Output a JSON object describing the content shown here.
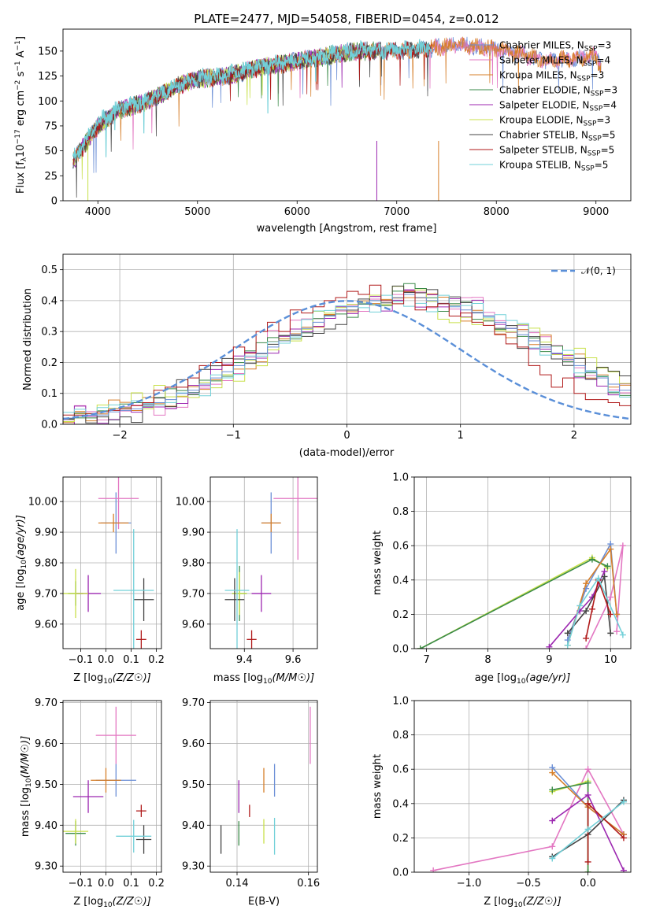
{
  "figure": {
    "title": "PLATE=2477, MJD=54058, FIBERID=0454, z=0.012",
    "colors": {
      "Chabrier MILES": "#6b8fd6",
      "Salpeter MILES": "#e377c2",
      "Kroupa MILES": "#d67f2a",
      "Chabrier ELODIE": "#3a8a48",
      "Salpeter ELODIE": "#9c27b0",
      "Kroupa ELODIE": "#c8e04a",
      "Chabrier STELIB": "#444444",
      "Salpeter STELIB": "#b01a1a",
      "Kroupa STELIB": "#72d0d8"
    }
  },
  "chart_data": [
    {
      "id": "spectrum",
      "type": "line",
      "xlabel": "wavelength [Angstrom, rest frame]",
      "ylabel": "Flux [f_λ 10^-17 erg cm^-2 s^-1 A^-1]",
      "xlim": [
        3650,
        9350
      ],
      "ylim": [
        0,
        172
      ],
      "xticks": [
        4000,
        5000,
        6000,
        7000,
        8000,
        9000
      ],
      "yticks": [
        0,
        25,
        50,
        75,
        100,
        125,
        150
      ],
      "grid": false,
      "legend_position": "top-right",
      "legend": [
        {
          "name": "Chabrier MILES",
          "suffix": "=3"
        },
        {
          "name": "Salpeter MILES",
          "suffix": "=4"
        },
        {
          "name": "Kroupa MILES",
          "suffix": "=3"
        },
        {
          "name": "Chabrier ELODIE",
          "suffix": "=3"
        },
        {
          "name": "Salpeter ELODIE",
          "suffix": "=4"
        },
        {
          "name": "Kroupa ELODIE",
          "suffix": "=3"
        },
        {
          "name": "Chabrier STELIB",
          "suffix": "=5"
        },
        {
          "name": "Salpeter STELIB",
          "suffix": "=5"
        },
        {
          "name": "Kroupa STELIB",
          "suffix": "=5"
        }
      ],
      "legend_sub": "SSP",
      "series": [
        {
          "name": "Chabrier MILES",
          "x": [
            3750,
            4000,
            4200,
            4500,
            4800,
            5000,
            5300,
            5600,
            6000,
            6300,
            6600,
            7000,
            7300,
            7600,
            8000,
            8500,
            9000,
            9050
          ],
          "y": [
            40,
            75,
            90,
            100,
            115,
            122,
            125,
            133,
            140,
            145,
            150,
            150,
            152,
            156,
            152,
            140,
            145,
            135
          ]
        },
        {
          "name": "Kroupa STELIB",
          "x": [
            3750,
            4000,
            4200,
            4500,
            4800,
            5000,
            5300,
            5600,
            6000,
            6300,
            6600,
            7000,
            7300
          ],
          "y": [
            42,
            78,
            92,
            102,
            116,
            123,
            126,
            134,
            141,
            146,
            151,
            151,
            153
          ]
        }
      ],
      "dropouts": [
        {
          "name": "Kroupa ELODIE",
          "x": 3900
        },
        {
          "name": "Salpeter ELODIE",
          "x": 6800
        },
        {
          "name": "Kroupa MILES",
          "x": 7420
        }
      ]
    },
    {
      "id": "residuals",
      "type": "bar",
      "xlabel": "(data-model)/error",
      "ylabel": "Normed distribution",
      "xlim": [
        -2.5,
        2.5
      ],
      "ylim": [
        0,
        0.55
      ],
      "xticks": [
        -2,
        -1,
        0,
        1,
        2
      ],
      "yticks": [
        0.0,
        0.1,
        0.2,
        0.3,
        0.4,
        0.5
      ],
      "grid": true,
      "legend_position": "top-right",
      "legend": [
        "𝒩(0, 1)"
      ],
      "bin_start": -2.5,
      "bin_width": 0.1,
      "series": [
        {
          "name": "Chabrier MILES",
          "values": [
            0.02,
            0.025,
            0.03,
            0.03,
            0.04,
            0.045,
            0.05,
            0.06,
            0.07,
            0.08,
            0.1,
            0.11,
            0.13,
            0.15,
            0.17,
            0.19,
            0.21,
            0.23,
            0.25,
            0.27,
            0.29,
            0.31,
            0.33,
            0.35,
            0.37,
            0.38,
            0.39,
            0.4,
            0.4,
            0.41,
            0.42,
            0.41,
            0.4,
            0.39,
            0.38,
            0.37,
            0.36,
            0.35,
            0.33,
            0.31,
            0.29,
            0.27,
            0.25,
            0.23,
            0.21,
            0.19,
            0.17,
            0.15,
            0.13,
            0.11,
            0.09,
            0.08,
            0.07,
            0.06,
            0.05,
            0.04,
            0.035,
            0.03,
            0.025,
            0.02
          ]
        },
        {
          "name": "Salpeter STELIB",
          "values": [
            0.03,
            0.03,
            0.035,
            0.04,
            0.045,
            0.05,
            0.06,
            0.07,
            0.11,
            0.12,
            0.12,
            0.15,
            0.19,
            0.2,
            0.19,
            0.25,
            0.23,
            0.3,
            0.33,
            0.3,
            0.37,
            0.36,
            0.38,
            0.4,
            0.41,
            0.43,
            0.42,
            0.45,
            0.4,
            0.39,
            0.43,
            0.37,
            0.38,
            0.39,
            0.35,
            0.36,
            0.33,
            0.32,
            0.29,
            0.26,
            0.25,
            0.19,
            0.16,
            0.12,
            0.15,
            0.1,
            0.08,
            0.08,
            0.07,
            0.06,
            0.05,
            0.04,
            0.035,
            0.03,
            0.025,
            0.03,
            0.02,
            0.02,
            0.02,
            0.02
          ]
        }
      ],
      "normal_curve": {
        "name": "𝒩(0, 1)",
        "mean": 0,
        "sigma": 1
      }
    },
    {
      "id": "age-vs-Z",
      "type": "scatter",
      "xlabel": "Z [log10(Z/Z☉)]",
      "ylabel": "age [log10(age/yr)]",
      "xlim": [
        -0.17,
        0.22
      ],
      "ylim": [
        9.52,
        10.08
      ],
      "xticks": [
        -0.1,
        0.0,
        0.1,
        0.2
      ],
      "yticks": [
        9.6,
        9.7,
        9.8,
        9.9,
        10.0
      ],
      "grid": true,
      "points": [
        {
          "name": "Chabrier MILES",
          "x": 0.04,
          "y": 9.93,
          "xerr": 0.06,
          "yerr": 0.1
        },
        {
          "name": "Salpeter MILES",
          "x": 0.05,
          "y": 10.01,
          "xerr": 0.08,
          "yerr": 0.1
        },
        {
          "name": "Kroupa MILES",
          "x": 0.03,
          "y": 9.93,
          "xerr": 0.06,
          "yerr": 0.03
        },
        {
          "name": "Chabrier ELODIE",
          "x": -0.12,
          "y": 9.7,
          "xerr": 0.03,
          "yerr": 0.04
        },
        {
          "name": "Salpeter ELODIE",
          "x": -0.07,
          "y": 9.7,
          "xerr": 0.05,
          "yerr": 0.06
        },
        {
          "name": "Kroupa ELODIE",
          "x": -0.12,
          "y": 9.7,
          "xerr": 0.05,
          "yerr": 0.08
        },
        {
          "name": "Chabrier STELIB",
          "x": 0.15,
          "y": 9.68,
          "xerr": 0.04,
          "yerr": 0.07
        },
        {
          "name": "Salpeter STELIB",
          "x": 0.14,
          "y": 9.55,
          "xerr": 0.02,
          "yerr": 0.03
        },
        {
          "name": "Kroupa STELIB",
          "x": 0.11,
          "y": 9.71,
          "xerr": 0.08,
          "yerr": 0.2
        }
      ]
    },
    {
      "id": "age-vs-mass",
      "type": "scatter",
      "xlabel": "mass [log10(M/M☉)]",
      "ylabel": "",
      "xlim": [
        9.26,
        9.7
      ],
      "ylim": [
        9.52,
        10.08
      ],
      "xticks": [
        9.4,
        9.6
      ],
      "yticks": [
        9.6,
        9.7,
        9.8,
        9.9,
        10.0
      ],
      "grid": true,
      "points": [
        {
          "name": "Chabrier MILES",
          "x": 9.51,
          "y": 9.93,
          "xerr": 0.04,
          "yerr": 0.1
        },
        {
          "name": "Salpeter MILES",
          "x": 9.62,
          "y": 10.01,
          "xerr": 0.1,
          "yerr": 0.2
        },
        {
          "name": "Kroupa MILES",
          "x": 9.51,
          "y": 9.93,
          "xerr": 0.04,
          "yerr": 0.03
        },
        {
          "name": "Chabrier ELODIE",
          "x": 9.38,
          "y": 9.7,
          "xerr": 0.03,
          "yerr": 0.09
        },
        {
          "name": "Salpeter ELODIE",
          "x": 9.47,
          "y": 9.7,
          "xerr": 0.04,
          "yerr": 0.06
        },
        {
          "name": "Kroupa ELODIE",
          "x": 9.38,
          "y": 9.7,
          "xerr": 0.03,
          "yerr": 0.07
        },
        {
          "name": "Chabrier STELIB",
          "x": 9.36,
          "y": 9.68,
          "xerr": 0.04,
          "yerr": 0.07
        },
        {
          "name": "Salpeter STELIB",
          "x": 9.43,
          "y": 9.55,
          "xerr": 0.02,
          "yerr": 0.03
        },
        {
          "name": "Kroupa STELIB",
          "x": 9.37,
          "y": 9.71,
          "xerr": 0.05,
          "yerr": 0.2
        }
      ]
    },
    {
      "id": "mass-weight-vs-age",
      "type": "line",
      "xlabel": "age [log10(age/yr)]",
      "ylabel": "mass weight",
      "xlim": [
        6.8,
        10.33
      ],
      "ylim": [
        0,
        1.0
      ],
      "xticks": [
        7,
        8,
        9,
        10
      ],
      "yticks": [
        0.0,
        0.2,
        0.4,
        0.6,
        0.8,
        1.0
      ],
      "grid": true,
      "series": [
        {
          "name": "Kroupa ELODIE",
          "x": [
            6.9,
            9.7,
            9.95
          ],
          "y": [
            0.0,
            0.53,
            0.47
          ]
        },
        {
          "name": "Chabrier ELODIE",
          "x": [
            6.9,
            9.7,
            9.95
          ],
          "y": [
            0.0,
            0.52,
            0.48
          ]
        },
        {
          "name": "Salpeter MILES",
          "x": [
            9.6,
            10.0,
            10.2,
            10.1
          ],
          "y": [
            0.0,
            0.3,
            0.6,
            0.1
          ]
        },
        {
          "name": "Chabrier MILES",
          "x": [
            9.3,
            9.6,
            10.0,
            10.1
          ],
          "y": [
            0.05,
            0.35,
            0.61,
            0.2
          ]
        },
        {
          "name": "Kroupa MILES",
          "x": [
            9.3,
            9.6,
            10.0,
            10.1
          ],
          "y": [
            0.02,
            0.38,
            0.58,
            0.2
          ]
        },
        {
          "name": "Salpeter ELODIE",
          "x": [
            9.0,
            9.5,
            9.7,
            9.9
          ],
          "y": [
            0.01,
            0.22,
            0.3,
            0.45
          ]
        },
        {
          "name": "Chabrier STELIB",
          "x": [
            9.3,
            9.6,
            9.9,
            10.0
          ],
          "y": [
            0.09,
            0.22,
            0.42,
            0.09
          ]
        },
        {
          "name": "Salpeter STELIB",
          "x": [
            9.6,
            9.7,
            9.8,
            10.0
          ],
          "y": [
            0.06,
            0.23,
            0.4,
            0.2
          ]
        },
        {
          "name": "Kroupa STELIB",
          "x": [
            9.3,
            9.5,
            9.8,
            10.2
          ],
          "y": [
            0.02,
            0.25,
            0.41,
            0.08
          ]
        }
      ]
    },
    {
      "id": "mass-vs-Z",
      "type": "scatter",
      "xlabel": "Z [log10(Z/Z☉)]",
      "ylabel": "mass [log10(M/M☉)]",
      "xlim": [
        -0.17,
        0.22
      ],
      "ylim": [
        9.285,
        9.705
      ],
      "xticks": [
        -0.1,
        0.0,
        0.1,
        0.2
      ],
      "yticks": [
        9.3,
        9.4,
        9.5,
        9.6,
        9.7
      ],
      "grid": true,
      "points": [
        {
          "name": "Chabrier MILES",
          "x": 0.04,
          "y": 9.51,
          "xerr": 0.08,
          "yerr": 0.04
        },
        {
          "name": "Salpeter MILES",
          "x": 0.04,
          "y": 9.62,
          "xerr": 0.08,
          "yerr": 0.07
        },
        {
          "name": "Kroupa MILES",
          "x": 0.0,
          "y": 9.51,
          "xerr": 0.06,
          "yerr": 0.03
        },
        {
          "name": "Chabrier ELODIE",
          "x": -0.12,
          "y": 9.38,
          "xerr": 0.04,
          "yerr": 0.03
        },
        {
          "name": "Salpeter ELODIE",
          "x": -0.07,
          "y": 9.47,
          "xerr": 0.06,
          "yerr": 0.04
        },
        {
          "name": "Kroupa ELODIE",
          "x": -0.12,
          "y": 9.385,
          "xerr": 0.05,
          "yerr": 0.03
        },
        {
          "name": "Chabrier STELIB",
          "x": 0.15,
          "y": 9.365,
          "xerr": 0.03,
          "yerr": 0.035
        },
        {
          "name": "Salpeter STELIB",
          "x": 0.14,
          "y": 9.435,
          "xerr": 0.02,
          "yerr": 0.015
        },
        {
          "name": "Kroupa STELIB",
          "x": 0.11,
          "y": 9.373,
          "xerr": 0.07,
          "yerr": 0.04
        }
      ]
    },
    {
      "id": "mass-vs-ebv",
      "type": "scatter",
      "xlabel": "E(B-V)",
      "ylabel": "",
      "xlim": [
        0.1325,
        0.1625
      ],
      "ylim": [
        9.285,
        9.705
      ],
      "xticks": [
        0.14,
        0.16
      ],
      "yticks": [
        9.3,
        9.4,
        9.5,
        9.6,
        9.7
      ],
      "grid": true,
      "points": [
        {
          "name": "Chabrier MILES",
          "x": 0.1505,
          "y": 9.51,
          "xerr": 0.0,
          "yerr": 0.04
        },
        {
          "name": "Salpeter MILES",
          "x": 0.1605,
          "y": 9.62,
          "xerr": 0.0,
          "yerr": 0.07
        },
        {
          "name": "Kroupa MILES",
          "x": 0.1475,
          "y": 9.51,
          "xerr": 0.0,
          "yerr": 0.03
        },
        {
          "name": "Chabrier ELODIE",
          "x": 0.1405,
          "y": 9.38,
          "xerr": 0.0,
          "yerr": 0.03
        },
        {
          "name": "Salpeter ELODIE",
          "x": 0.1405,
          "y": 9.47,
          "xerr": 0.0,
          "yerr": 0.04
        },
        {
          "name": "Kroupa ELODIE",
          "x": 0.1475,
          "y": 9.385,
          "xerr": 0.0,
          "yerr": 0.03
        },
        {
          "name": "Chabrier STELIB",
          "x": 0.1355,
          "y": 9.365,
          "xerr": 0.0,
          "yerr": 0.035
        },
        {
          "name": "Salpeter STELIB",
          "x": 0.1435,
          "y": 9.435,
          "xerr": 0.0,
          "yerr": 0.015
        },
        {
          "name": "Kroupa STELIB",
          "x": 0.1505,
          "y": 9.373,
          "xerr": 0.0,
          "yerr": 0.045
        }
      ]
    },
    {
      "id": "mass-weight-vs-Z",
      "type": "line",
      "xlabel": "Z [log10(Z/Z☉)]",
      "ylabel": "mass weight",
      "xlim": [
        -1.46,
        0.36
      ],
      "ylim": [
        0,
        1.0
      ],
      "xticks": [
        -1.0,
        -0.5,
        0.0
      ],
      "yticks": [
        0.0,
        0.2,
        0.4,
        0.6,
        0.8,
        1.0
      ],
      "grid": true,
      "series": [
        {
          "name": "Salpeter MILES",
          "x": [
            -1.3,
            -0.3,
            0.0,
            0.3
          ],
          "y": [
            0.01,
            0.15,
            0.6,
            0.22
          ]
        },
        {
          "name": "Chabrier MILES",
          "x": [
            -0.3,
            0.0,
            0.3
          ],
          "y": [
            0.61,
            0.38,
            0.22
          ]
        },
        {
          "name": "Kroupa MILES",
          "x": [
            -0.3,
            0.0,
            0.3
          ],
          "y": [
            0.58,
            0.38,
            0.22
          ]
        },
        {
          "name": "Kroupa ELODIE",
          "x": [
            -0.3,
            0.0,
            0.0
          ],
          "y": [
            0.47,
            0.53,
            0.0
          ]
        },
        {
          "name": "Chabrier ELODIE",
          "x": [
            -0.3,
            0.0,
            0.0
          ],
          "y": [
            0.48,
            0.52,
            0.0
          ]
        },
        {
          "name": "Salpeter ELODIE",
          "x": [
            -0.3,
            0.0,
            0.3
          ],
          "y": [
            0.3,
            0.45,
            0.01
          ]
        },
        {
          "name": "Chabrier STELIB",
          "x": [
            -0.3,
            0.0,
            0.3
          ],
          "y": [
            0.09,
            0.22,
            0.42
          ]
        },
        {
          "name": "Salpeter STELIB",
          "x": [
            0.0,
            0.0,
            0.3
          ],
          "y": [
            0.06,
            0.4,
            0.2
          ]
        },
        {
          "name": "Kroupa STELIB",
          "x": [
            -0.3,
            0.0,
            0.3
          ],
          "y": [
            0.08,
            0.25,
            0.41
          ]
        }
      ]
    }
  ]
}
